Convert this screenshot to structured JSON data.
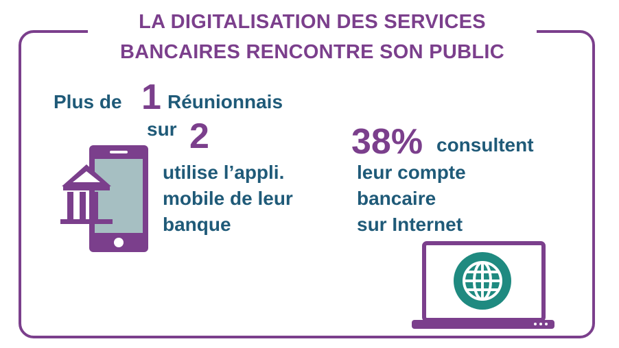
{
  "title": {
    "line1": "LA DIGITALISATION DES SERVICES",
    "line2": "BANCAIRES RENCONTRE SON PUBLIC"
  },
  "stat_mobile": {
    "prefix": "Plus de",
    "numerator": "1",
    "subject": "Réunionnais",
    "sur": "sur",
    "denominator": "2",
    "line1": "utilise l’appli.",
    "line2": "mobile de leur",
    "line3": "banque"
  },
  "stat_internet": {
    "percent": "38%",
    "verb": "consultent",
    "line1": "leur compte",
    "line2": "bancaire",
    "line3": "sur Internet"
  },
  "colors": {
    "purple": "#7b3f8c",
    "blue": "#1f5a78",
    "teal": "#1f8a80",
    "phone_screen": "#a6bfc2"
  },
  "icons": [
    "smartphone-bank-icon",
    "laptop-globe-icon"
  ]
}
